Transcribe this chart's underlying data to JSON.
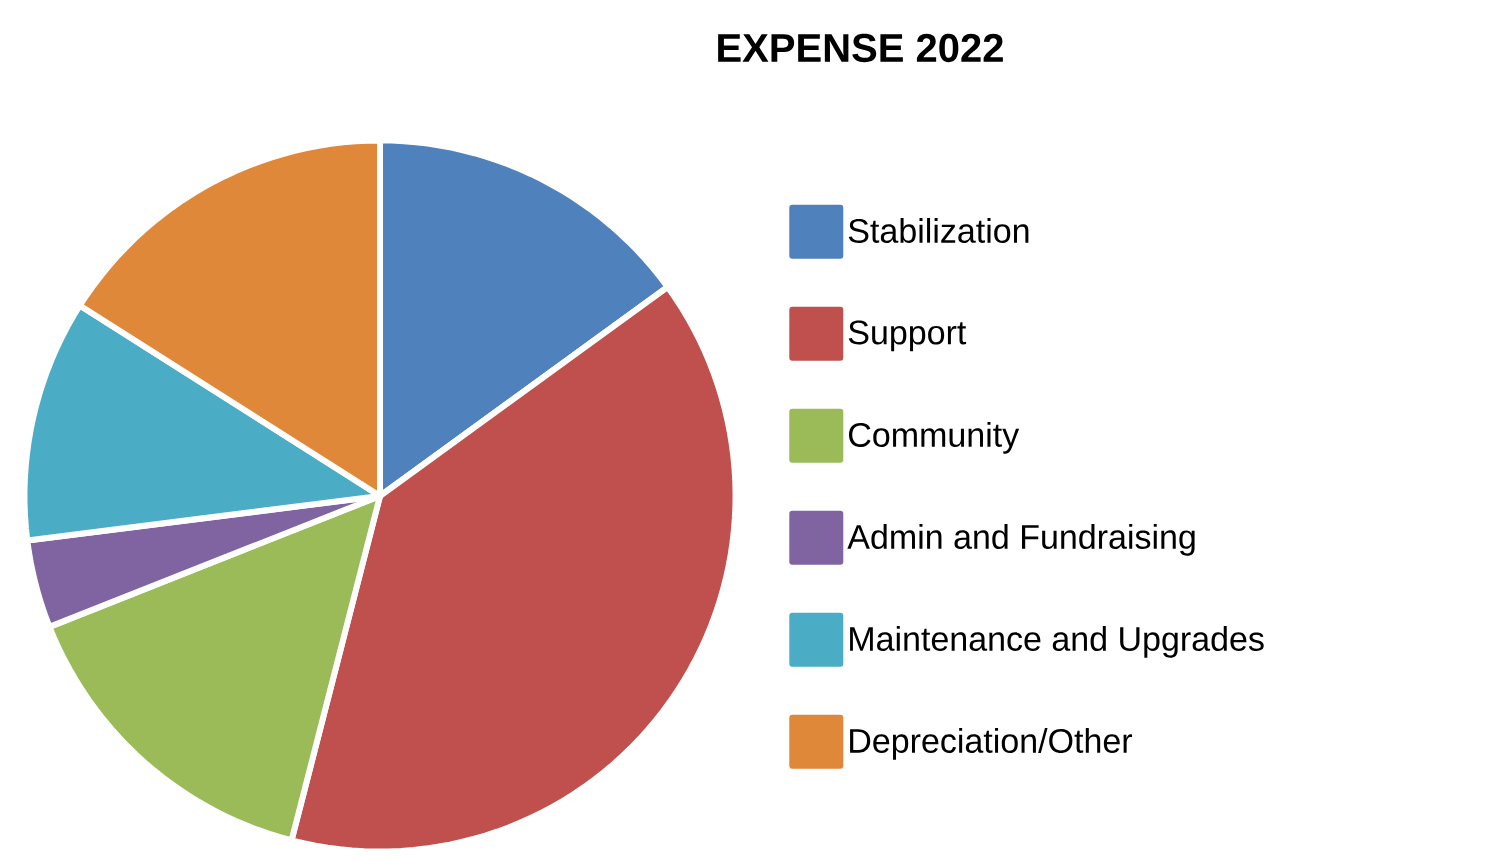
{
  "chart_data": {
    "type": "pie",
    "title": "EXPENSE 2022",
    "categories": [
      "Stabilization",
      "Support",
      "Community",
      "Admin and Fundraising",
      "Maintenance and Upgrades",
      "Depreciation/Other"
    ],
    "values": [
      15,
      39,
      15,
      4,
      11,
      16
    ],
    "colors": [
      "#4f81bd",
      "#c0504d",
      "#9bbb59",
      "#8064a2",
      "#4bacc6",
      "#e0883a"
    ],
    "legend": "right"
  }
}
